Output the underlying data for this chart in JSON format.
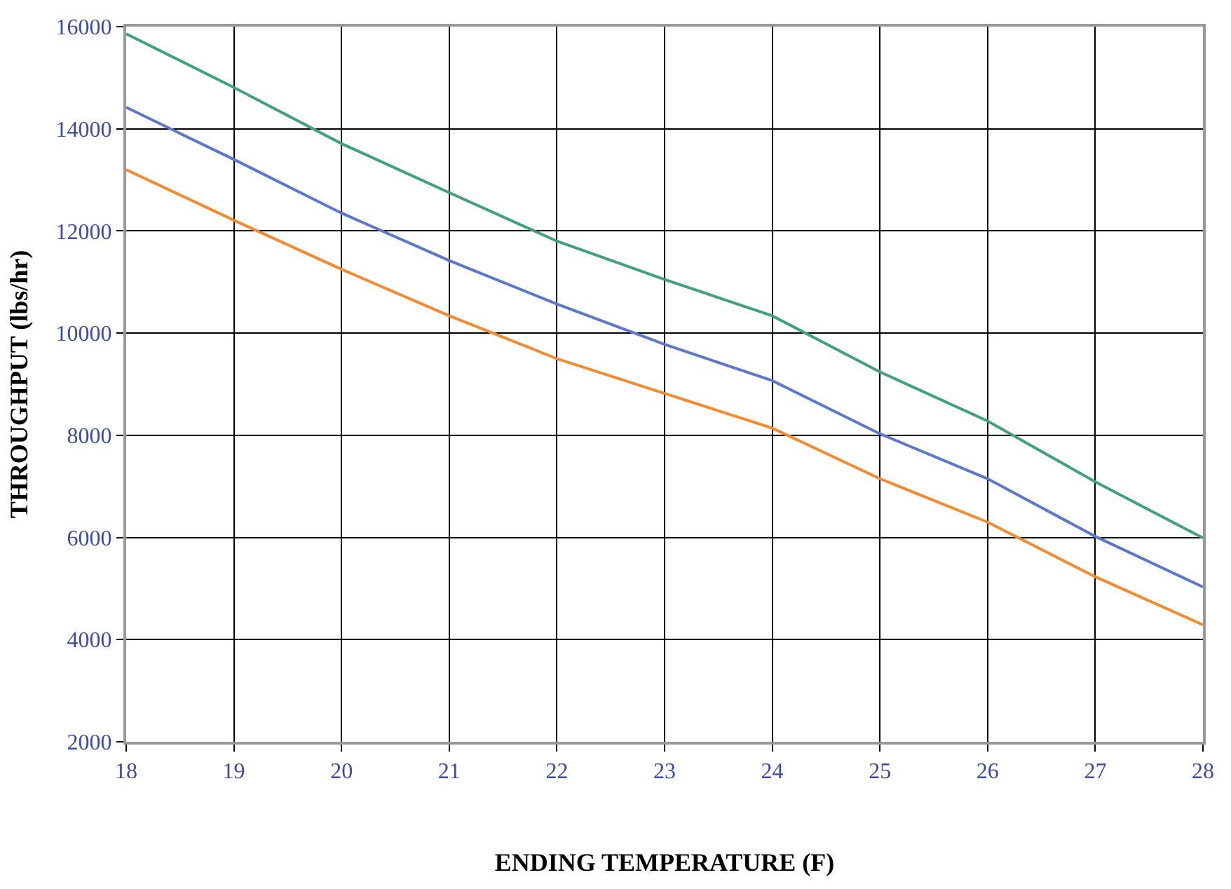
{
  "chart_data": {
    "type": "line",
    "xlabel": "ENDING TEMPERATURE (F)",
    "ylabel": "THROUGHPUT (lbs/hr)",
    "x": [
      18,
      19,
      20,
      21,
      22,
      23,
      24,
      25,
      26,
      27,
      28
    ],
    "series": [
      {
        "color": "#3fa27a",
        "values": [
          15860,
          14810,
          13710,
          12750,
          11800,
          11050,
          10340,
          9240,
          8280,
          7090,
          5990
        ]
      },
      {
        "color": "#5b78cc",
        "values": [
          14420,
          13400,
          12350,
          11420,
          10570,
          9780,
          9070,
          8030,
          7150,
          6020,
          5030
        ]
      },
      {
        "color": "#f78a2e",
        "values": [
          13200,
          12210,
          11250,
          10340,
          9500,
          8820,
          8140,
          7150,
          6300,
          5230,
          4290
        ]
      }
    ],
    "xlim": [
      18,
      28
    ],
    "xticks": [
      18,
      19,
      20,
      21,
      22,
      23,
      24,
      25,
      26,
      27,
      28
    ],
    "ylim": [
      2000,
      16000
    ],
    "yticks": [
      2000,
      4000,
      6000,
      8000,
      10000,
      12000,
      14000,
      16000
    ],
    "grid": true,
    "marker": "none",
    "line_style": "solid"
  }
}
